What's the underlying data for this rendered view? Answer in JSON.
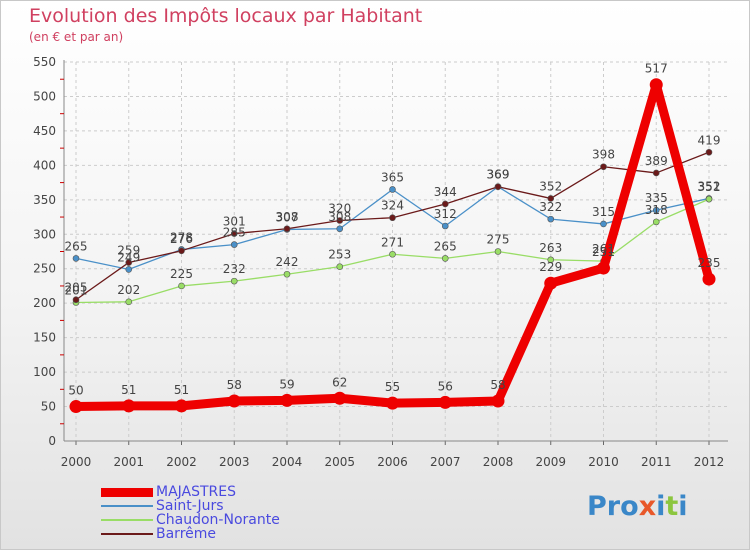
{
  "chart_data": {
    "type": "line",
    "title": "Evolution des Impôts locaux par Habitant",
    "subtitle": "(en € et par an)",
    "xlabel": "",
    "ylabel": "",
    "ylim": [
      0,
      550
    ],
    "yticks": [
      0,
      50,
      100,
      150,
      200,
      250,
      300,
      350,
      400,
      450,
      500,
      550
    ],
    "grid": true,
    "legend_position": "bottom-left",
    "categories": [
      "2000",
      "2001",
      "2002",
      "2003",
      "2004",
      "2005",
      "2006",
      "2007",
      "2008",
      "2009",
      "2010",
      "2011",
      "2012"
    ],
    "series": [
      {
        "name": "MAJASTRES",
        "color": "#ee0000",
        "emphasis": true,
        "values": [
          50,
          51,
          51,
          58,
          59,
          62,
          55,
          56,
          58,
          229,
          251,
          517,
          235
        ]
      },
      {
        "name": "Saint-Jurs",
        "color": "#4a90c8",
        "emphasis": false,
        "values": [
          265,
          249,
          278,
          285,
          307,
          308,
          365,
          312,
          369,
          322,
          315,
          335,
          352
        ]
      },
      {
        "name": "Chaudon-Norante",
        "color": "#99dd66",
        "emphasis": false,
        "values": [
          201,
          202,
          225,
          232,
          242,
          253,
          271,
          265,
          275,
          263,
          261,
          318,
          351
        ]
      },
      {
        "name": "Barrême",
        "color": "#6b1a1a",
        "emphasis": false,
        "values": [
          205,
          259,
          276,
          301,
          308,
          320,
          324,
          344,
          369,
          352,
          398,
          389,
          419
        ]
      }
    ]
  },
  "logo": {
    "text": "Proxiti",
    "letter_colors": [
      "#3a87c8",
      "#3a87c8",
      "#3a87c8",
      "#e8582a",
      "#3a87c8",
      "#8cc63f",
      "#3a87c8"
    ]
  }
}
